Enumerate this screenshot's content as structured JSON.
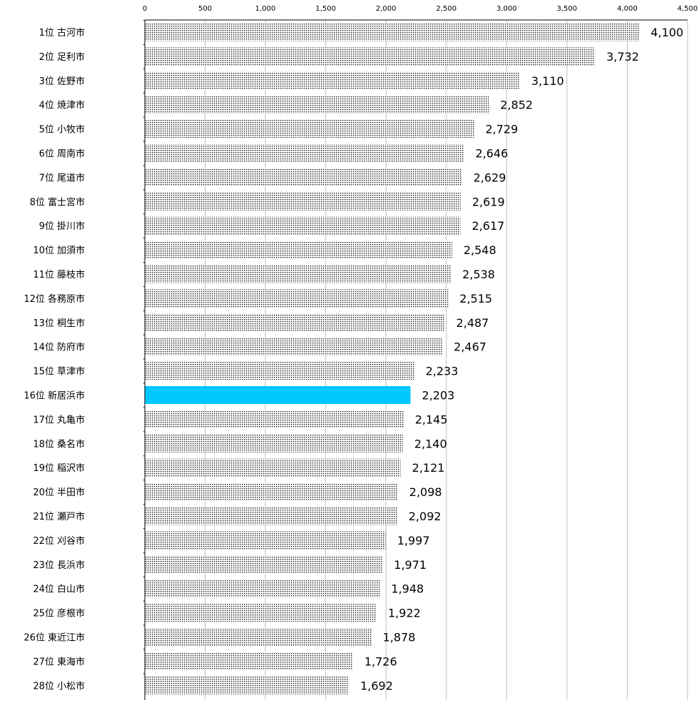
{
  "chart_data": {
    "type": "bar",
    "orientation": "horizontal",
    "title": "",
    "xlabel": "",
    "ylabel": "",
    "xlim": [
      0,
      4500
    ],
    "ticks": [
      0,
      500,
      1000,
      1500,
      2000,
      2500,
      3000,
      3500,
      4000,
      4500
    ],
    "tick_labels": [
      "0",
      "500",
      "1,000",
      "1,500",
      "2,000",
      "2,500",
      "3,000",
      "3,500",
      "4,000",
      "4,500"
    ],
    "grid": "vertical",
    "highlight_index": 15,
    "colors": {
      "bar_pattern_dot": "#1a1a1a",
      "bar_pattern_bg": "#ffffff",
      "highlight": "#00c8ff",
      "grid": "#c0c0c0",
      "axis": "#000000"
    },
    "categories": [
      "1位 古河市",
      "2位 足利市",
      "3位 佐野市",
      "4位 焼津市",
      "5位 小牧市",
      "6位 周南市",
      "7位 尾道市",
      "8位 富士宮市",
      "9位 掛川市",
      "10位 加須市",
      "11位 藤枝市",
      "12位 各務原市",
      "13位 桐生市",
      "14位 防府市",
      "15位 草津市",
      "16位 新居浜市",
      "17位 丸亀市",
      "18位 桑名市",
      "19位 稲沢市",
      "20位 半田市",
      "21位 瀬戸市",
      "22位 刈谷市",
      "23位 長浜市",
      "24位 白山市",
      "25位 彦根市",
      "26位 東近江市",
      "27位 東海市",
      "28位 小松市"
    ],
    "values": [
      4100,
      3732,
      3110,
      2852,
      2729,
      2646,
      2629,
      2619,
      2617,
      2548,
      2538,
      2515,
      2487,
      2467,
      2233,
      2203,
      2145,
      2140,
      2121,
      2098,
      2092,
      1997,
      1971,
      1948,
      1922,
      1878,
      1726,
      1692
    ],
    "value_labels": [
      "4,100",
      "3,732",
      "3,110",
      "2,852",
      "2,729",
      "2,646",
      "2,629",
      "2,619",
      "2,617",
      "2,548",
      "2,538",
      "2,515",
      "2,487",
      "2,467",
      "2,233",
      "2,203",
      "2,145",
      "2,140",
      "2,121",
      "2,098",
      "2,092",
      "1,997",
      "1,971",
      "1,948",
      "1,922",
      "1,878",
      "1,726",
      "1,692"
    ]
  }
}
